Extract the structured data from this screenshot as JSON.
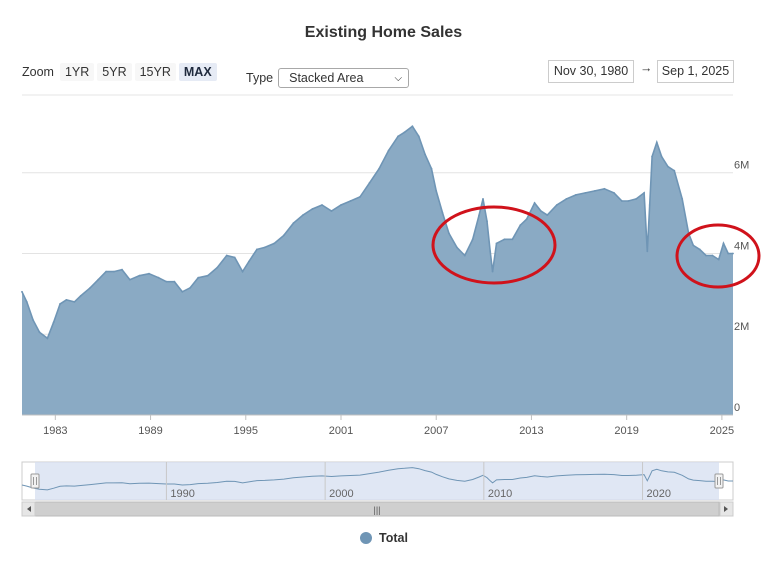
{
  "chart_title": "Existing Home Sales",
  "zoom": {
    "label": "Zoom",
    "buttons": [
      "1YR",
      "5YR",
      "15YR",
      "MAX"
    ],
    "active": "MAX"
  },
  "type_selector": {
    "label": "Type",
    "selected": "Stacked Area"
  },
  "date_range": {
    "from": "Nov 30, 1980",
    "arrow": "→",
    "to": "Sep 1, 2025"
  },
  "navigator": {
    "labels": [
      "1990",
      "2000",
      "2010",
      "2020"
    ],
    "scrollbar_grip": "|||"
  },
  "legend": {
    "label": "Total"
  },
  "colors": {
    "series": "#6f95b5",
    "fill": "#8aaac4",
    "highlight_circle": "#d0121b",
    "navigator_mask": "#d6dff0"
  },
  "annotations": {
    "circles": 2,
    "color": "red",
    "marks": [
      "2008-2013 housing slump",
      "2023-2025 decline"
    ]
  },
  "chart_data": {
    "type": "area",
    "title": "Existing Home Sales",
    "series": [
      {
        "name": "Total"
      }
    ],
    "x_axis": {
      "ticks": [
        "1983",
        "1989",
        "1995",
        "2001",
        "2007",
        "2013",
        "2019",
        "2025"
      ],
      "range": [
        1980.9,
        2025.7
      ]
    },
    "y_axis": {
      "ticks": [
        "0",
        "2M",
        "4M",
        "6M"
      ],
      "range": [
        0,
        7.8
      ],
      "units": "millions",
      "position": "right"
    },
    "grid": true,
    "legend_position": "bottom",
    "x": [
      1980.9,
      1981.2,
      1981.6,
      1982.0,
      1982.5,
      1982.9,
      1983.3,
      1983.7,
      1984.2,
      1984.6,
      1985.2,
      1985.7,
      1986.2,
      1986.7,
      1987.2,
      1987.7,
      1988.3,
      1988.9,
      1989.5,
      1990.0,
      1990.5,
      1991.0,
      1991.5,
      1992.0,
      1992.6,
      1993.2,
      1993.8,
      1994.3,
      1994.8,
      1995.2,
      1995.7,
      1996.2,
      1996.8,
      1997.4,
      1998.0,
      1998.6,
      1999.2,
      1999.8,
      2000.4,
      2001.0,
      2001.6,
      2002.2,
      2002.8,
      2003.4,
      2004.0,
      2004.6,
      2005.0,
      2005.5,
      2005.9,
      2006.3,
      2006.7,
      2007.0,
      2007.4,
      2007.8,
      2008.3,
      2008.8,
      2009.3,
      2009.7,
      2009.95,
      2010.2,
      2010.4,
      2010.55,
      2010.8,
      2011.3,
      2011.8,
      2012.3,
      2012.7,
      2013.2,
      2013.6,
      2014.0,
      2014.6,
      2015.2,
      2015.8,
      2016.4,
      2017.0,
      2017.6,
      2018.2,
      2018.7,
      2019.1,
      2019.6,
      2020.1,
      2020.3,
      2020.45,
      2020.6,
      2020.9,
      2021.2,
      2021.6,
      2022.0,
      2022.5,
      2022.9,
      2023.2,
      2023.6,
      2024.0,
      2024.4,
      2024.8,
      2025.1,
      2025.4,
      2025.7
    ],
    "values": [
      3.05,
      2.8,
      2.35,
      2.05,
      1.9,
      2.3,
      2.75,
      2.85,
      2.8,
      2.95,
      3.15,
      3.35,
      3.55,
      3.55,
      3.6,
      3.35,
      3.45,
      3.5,
      3.4,
      3.3,
      3.3,
      3.05,
      3.15,
      3.4,
      3.45,
      3.65,
      3.95,
      3.9,
      3.55,
      3.8,
      4.1,
      4.15,
      4.25,
      4.45,
      4.75,
      4.95,
      5.1,
      5.2,
      5.05,
      5.2,
      5.3,
      5.4,
      5.75,
      6.1,
      6.55,
      6.9,
      7.0,
      7.15,
      6.9,
      6.45,
      6.1,
      5.55,
      5.0,
      4.5,
      4.15,
      3.95,
      4.35,
      4.95,
      5.35,
      4.8,
      4.05,
      3.55,
      4.25,
      4.35,
      4.35,
      4.7,
      4.85,
      5.25,
      5.05,
      4.95,
      5.2,
      5.35,
      5.45,
      5.5,
      5.55,
      5.6,
      5.5,
      5.3,
      5.3,
      5.35,
      5.5,
      4.05,
      5.2,
      6.4,
      6.75,
      6.4,
      6.15,
      6.05,
      5.35,
      4.5,
      4.2,
      4.1,
      3.95,
      3.95,
      3.85,
      4.25,
      4.0,
      4.0
    ]
  }
}
